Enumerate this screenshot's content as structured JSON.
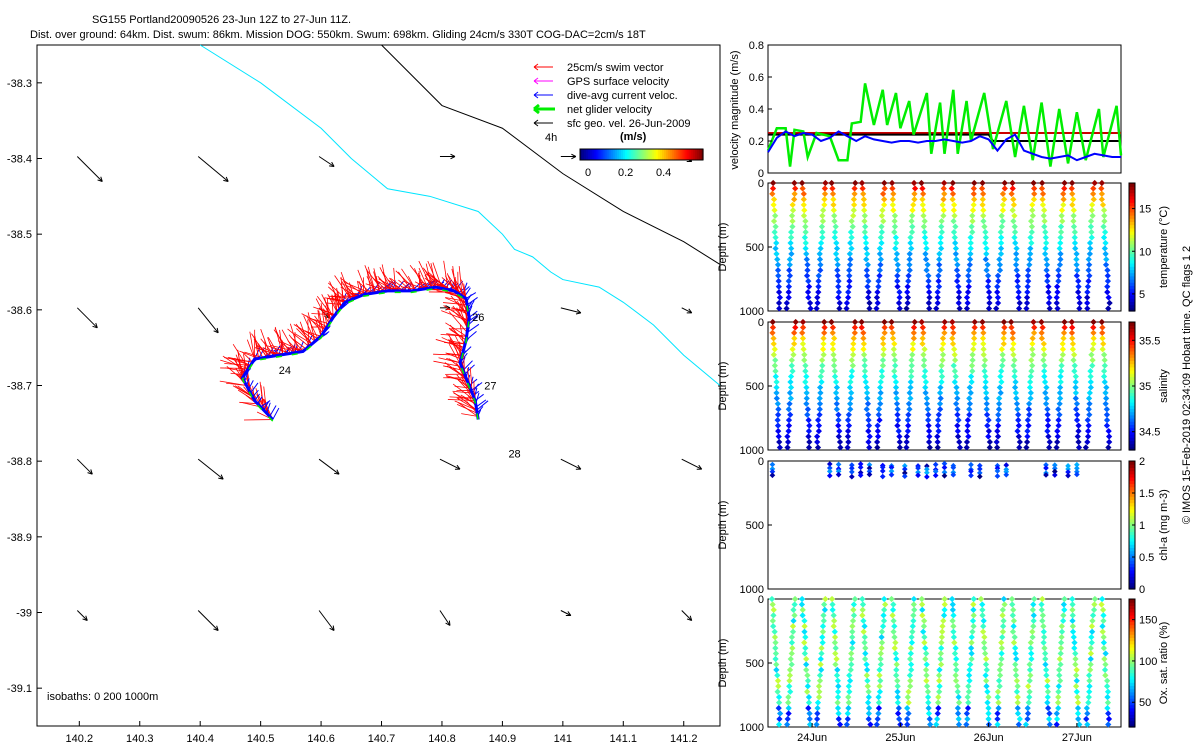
{
  "title_lines": [
    "SG155 Portland20090526 23-Jun 12Z to 27-Jun 11Z.",
    "Dist. over ground: 64km. Dist. swum: 86km. Mission DOG: 550km. Swum: 698km. Gliding 24cm/s 330T COG-DAC=2cm/s 18T"
  ],
  "colors": {
    "swim": "#ff0000",
    "gps": "#ff00ff",
    "dac": "#0000ff",
    "net": "#00ee00",
    "geo": "#000000",
    "coast": "#00e5ff",
    "isobath": "#000000"
  },
  "chart_data": [
    {
      "type": "scatter",
      "panel": "map",
      "xticks": [
        "140.2",
        "140.3",
        "140.4",
        "140.5",
        "140.6",
        "140.7",
        "140.8",
        "140.9",
        "141",
        "141.1",
        "141.2"
      ],
      "yticks": [
        "-38.3",
        "-38.4",
        "-38.5",
        "-38.6",
        "-38.7",
        "-38.8",
        "-38.9",
        "-39",
        "-39.1"
      ],
      "xlim": [
        140.13,
        141.26
      ],
      "ylim": [
        -39.15,
        -38.25
      ],
      "legend": [
        {
          "label": "25cm/s swim vector",
          "color_key": "swim"
        },
        {
          "label": "GPS surface velocity",
          "color_key": "gps"
        },
        {
          "label": "dive-avg current veloc.",
          "color_key": "dac"
        },
        {
          "label": "net glider velocity",
          "color_key": "net"
        },
        {
          "label": "sfc geo. vel. 26-Jun-2009",
          "color_key": "geo"
        }
      ],
      "legend_position": "top-right",
      "scale_label": "4h",
      "colorbar": {
        "label": "(m/s)",
        "ticks": [
          "0",
          "0.2",
          "0.4"
        ],
        "range": [
          0,
          0.55
        ]
      },
      "isobath_text": "isobaths: 0   200   1000m",
      "day_labels": [
        {
          "text": "24",
          "lon": 140.53,
          "lat": -38.685
        },
        {
          "text": "26",
          "lon": 140.85,
          "lat": -38.615
        },
        {
          "text": "27",
          "lon": 140.87,
          "lat": -38.705
        },
        {
          "text": "28",
          "lon": 140.91,
          "lat": -38.795
        }
      ],
      "track": [
        [
          140.52,
          -38.745
        ],
        [
          140.49,
          -38.72
        ],
        [
          140.47,
          -38.69
        ],
        [
          140.49,
          -38.665
        ],
        [
          140.53,
          -38.66
        ],
        [
          140.57,
          -38.655
        ],
        [
          140.6,
          -38.635
        ],
        [
          140.62,
          -38.61
        ],
        [
          140.64,
          -38.59
        ],
        [
          140.67,
          -38.58
        ],
        [
          140.71,
          -38.575
        ],
        [
          140.75,
          -38.575
        ],
        [
          140.79,
          -38.57
        ],
        [
          140.82,
          -38.575
        ],
        [
          140.84,
          -38.585
        ],
        [
          140.845,
          -38.61
        ],
        [
          140.84,
          -38.64
        ],
        [
          140.83,
          -38.67
        ],
        [
          140.845,
          -38.7
        ],
        [
          140.855,
          -38.72
        ],
        [
          140.86,
          -38.745
        ]
      ],
      "geo_grid_lon": [
        140.2,
        140.4,
        140.6,
        140.8,
        141.0,
        141.2
      ],
      "geo_grid_lat": [
        -38.4,
        -38.6,
        -38.8,
        -39.0
      ],
      "geo_vectors": [
        [
          [
            0.05,
            -0.05
          ],
          [
            0.06,
            -0.05
          ],
          [
            0.03,
            -0.02
          ],
          [
            0.03,
            0.0
          ],
          [
            0.03,
            0.0
          ],
          [
            0.02,
            -0.01
          ]
        ],
        [
          [
            0.04,
            -0.04
          ],
          [
            0.04,
            -0.05
          ],
          [
            0.02,
            -0.02
          ],
          [
            0.02,
            0.0
          ],
          [
            0.04,
            -0.01
          ],
          [
            0.02,
            -0.01
          ]
        ],
        [
          [
            0.03,
            -0.03
          ],
          [
            0.05,
            -0.04
          ],
          [
            0.04,
            -0.03
          ],
          [
            0.04,
            -0.02
          ],
          [
            0.04,
            -0.02
          ],
          [
            0.04,
            -0.02
          ]
        ],
        [
          [
            0.02,
            -0.02
          ],
          [
            0.04,
            -0.04
          ],
          [
            0.03,
            -0.04
          ],
          [
            0.02,
            -0.03
          ],
          [
            0.02,
            -0.01
          ],
          [
            0.02,
            -0.02
          ]
        ]
      ],
      "coastline": [
        [
          140.4,
          -38.25
        ],
        [
          140.5,
          -38.3
        ],
        [
          140.6,
          -38.36
        ],
        [
          140.65,
          -38.4
        ],
        [
          140.71,
          -38.44
        ],
        [
          140.78,
          -38.45
        ],
        [
          140.86,
          -38.47
        ],
        [
          140.9,
          -38.5
        ],
        [
          140.92,
          -38.52
        ],
        [
          140.95,
          -38.53
        ],
        [
          140.98,
          -38.55
        ],
        [
          141.0,
          -38.56
        ],
        [
          141.06,
          -38.57
        ],
        [
          141.1,
          -38.59
        ],
        [
          141.15,
          -38.62
        ],
        [
          141.2,
          -38.66
        ],
        [
          141.26,
          -38.7
        ]
      ],
      "isobath_line": [
        [
          140.7,
          -38.25
        ],
        [
          140.8,
          -38.33
        ],
        [
          140.9,
          -38.36
        ],
        [
          141.0,
          -38.42
        ],
        [
          141.1,
          -38.47
        ],
        [
          141.2,
          -38.51
        ],
        [
          141.26,
          -38.54
        ]
      ]
    },
    {
      "type": "line",
      "panel": "velocity",
      "ylabel": "velocity magnitude (m/s)",
      "yticks": [
        "0",
        "0.2",
        "0.4",
        "0.6",
        "0.8"
      ],
      "ylim": [
        0,
        0.8
      ],
      "xlim": [
        23.5,
        27.5
      ],
      "net_velocity": [
        [
          23.5,
          0.14
        ],
        [
          23.6,
          0.28
        ],
        [
          23.7,
          0.28
        ],
        [
          23.75,
          0.04
        ],
        [
          23.8,
          0.27
        ],
        [
          23.9,
          0.26
        ],
        [
          23.95,
          0.1
        ],
        [
          24.05,
          0.25
        ],
        [
          24.2,
          0.23
        ],
        [
          24.3,
          0.08
        ],
        [
          24.4,
          0.08
        ],
        [
          24.45,
          0.31
        ],
        [
          24.55,
          0.32
        ],
        [
          24.6,
          0.56
        ],
        [
          24.7,
          0.3
        ],
        [
          24.8,
          0.52
        ],
        [
          24.85,
          0.3
        ],
        [
          24.95,
          0.5
        ],
        [
          25.0,
          0.28
        ],
        [
          25.1,
          0.45
        ],
        [
          25.15,
          0.24
        ],
        [
          25.3,
          0.5
        ],
        [
          25.35,
          0.12
        ],
        [
          25.45,
          0.44
        ],
        [
          25.5,
          0.12
        ],
        [
          25.6,
          0.52
        ],
        [
          25.65,
          0.12
        ],
        [
          25.75,
          0.45
        ],
        [
          25.8,
          0.2
        ],
        [
          25.95,
          0.5
        ],
        [
          26.05,
          0.15
        ],
        [
          26.2,
          0.45
        ],
        [
          26.3,
          0.1
        ],
        [
          26.4,
          0.42
        ],
        [
          26.5,
          0.08
        ],
        [
          26.6,
          0.44
        ],
        [
          26.7,
          0.04
        ],
        [
          26.8,
          0.4
        ],
        [
          26.9,
          0.06
        ],
        [
          27.0,
          0.38
        ],
        [
          27.1,
          0.08
        ],
        [
          27.25,
          0.4
        ],
        [
          27.3,
          0.1
        ],
        [
          27.45,
          0.42
        ],
        [
          27.5,
          0.11
        ]
      ],
      "dac_velocity": [
        [
          23.5,
          0.13
        ],
        [
          23.6,
          0.22
        ],
        [
          23.7,
          0.26
        ],
        [
          23.8,
          0.23
        ],
        [
          23.9,
          0.25
        ],
        [
          24.0,
          0.24
        ],
        [
          24.1,
          0.2
        ],
        [
          24.2,
          0.22
        ],
        [
          24.3,
          0.26
        ],
        [
          24.4,
          0.23
        ],
        [
          24.5,
          0.2
        ],
        [
          24.6,
          0.23
        ],
        [
          24.7,
          0.21
        ],
        [
          24.8,
          0.2
        ],
        [
          24.9,
          0.19
        ],
        [
          25.0,
          0.2
        ],
        [
          25.1,
          0.2
        ],
        [
          25.2,
          0.19
        ],
        [
          25.3,
          0.2
        ],
        [
          25.4,
          0.2
        ],
        [
          25.5,
          0.21
        ],
        [
          25.6,
          0.2
        ],
        [
          25.7,
          0.19
        ],
        [
          25.8,
          0.2
        ],
        [
          25.9,
          0.23
        ],
        [
          26.0,
          0.21
        ],
        [
          26.1,
          0.14
        ],
        [
          26.2,
          0.21
        ],
        [
          26.3,
          0.24
        ],
        [
          26.4,
          0.14
        ],
        [
          26.5,
          0.12
        ],
        [
          26.6,
          0.1
        ],
        [
          26.7,
          0.09
        ],
        [
          26.8,
          0.1
        ],
        [
          26.9,
          0.11
        ],
        [
          27.0,
          0.08
        ],
        [
          27.1,
          0.1
        ],
        [
          27.2,
          0.12
        ],
        [
          27.3,
          0.11
        ],
        [
          27.4,
          0.1
        ],
        [
          27.5,
          0.1
        ]
      ],
      "ref_red": 0.25,
      "ref_black_segments": [
        [
          23.5,
          0.24
        ],
        [
          26.0,
          0.24
        ],
        [
          26.05,
          0.2
        ],
        [
          27.5,
          0.2
        ]
      ]
    },
    {
      "type": "scatter",
      "panel": "temperature",
      "ylabel": "Depth (m)",
      "yticks": [
        "0",
        "500",
        "1000"
      ],
      "colorbar_label": "temperature (°C)",
      "colorbar_ticks": [
        "5",
        "10",
        "15"
      ],
      "colorbar_range": [
        3,
        18
      ],
      "profiles": 23,
      "surface_value": 17,
      "bottom_value": 3.5
    },
    {
      "type": "scatter",
      "panel": "salinity",
      "ylabel": "Depth (m)",
      "yticks": [
        "0",
        "500",
        "1000"
      ],
      "colorbar_label": "salinity",
      "colorbar_ticks": [
        "34.5",
        "35",
        "35.5"
      ],
      "colorbar_range": [
        34.3,
        35.7
      ],
      "profiles": 23,
      "surface_value": 35.55,
      "bottom_value": 34.4
    },
    {
      "type": "scatter",
      "panel": "chlorophyll",
      "ylabel": "Depth (m)",
      "yticks": [
        "0",
        "500",
        "1000"
      ],
      "colorbar_label": "chl-a (mg m-3)",
      "colorbar_ticks": [
        "0",
        "0.5",
        "1",
        "1.5",
        "2"
      ],
      "colorbar_range": [
        0,
        2
      ],
      "profile_days": [
        23.55,
        24.2,
        24.3,
        24.45,
        24.55,
        24.65,
        24.8,
        24.9,
        25.05,
        25.2,
        25.3,
        25.4,
        25.5,
        25.6,
        25.8,
        25.9,
        26.1,
        26.2,
        26.65,
        26.75,
        26.9,
        27.0
      ]
    },
    {
      "type": "scatter",
      "panel": "oxygen",
      "ylabel": "Depth (m)",
      "yticks": [
        "0",
        "500",
        "1000"
      ],
      "colorbar_label": "Ox. sat. ratio (%)",
      "colorbar_ticks": [
        "50",
        "100",
        "150"
      ],
      "colorbar_range": [
        20,
        175
      ],
      "profiles": 23,
      "xticks": [
        "24Jun",
        "25Jun",
        "26Jun",
        "27Jun"
      ],
      "xlim": [
        23.5,
        27.5
      ]
    }
  ],
  "side_note": "© IMOS 15-Feb-2019 02:34:09 Hobart time. QC flags 1  2"
}
